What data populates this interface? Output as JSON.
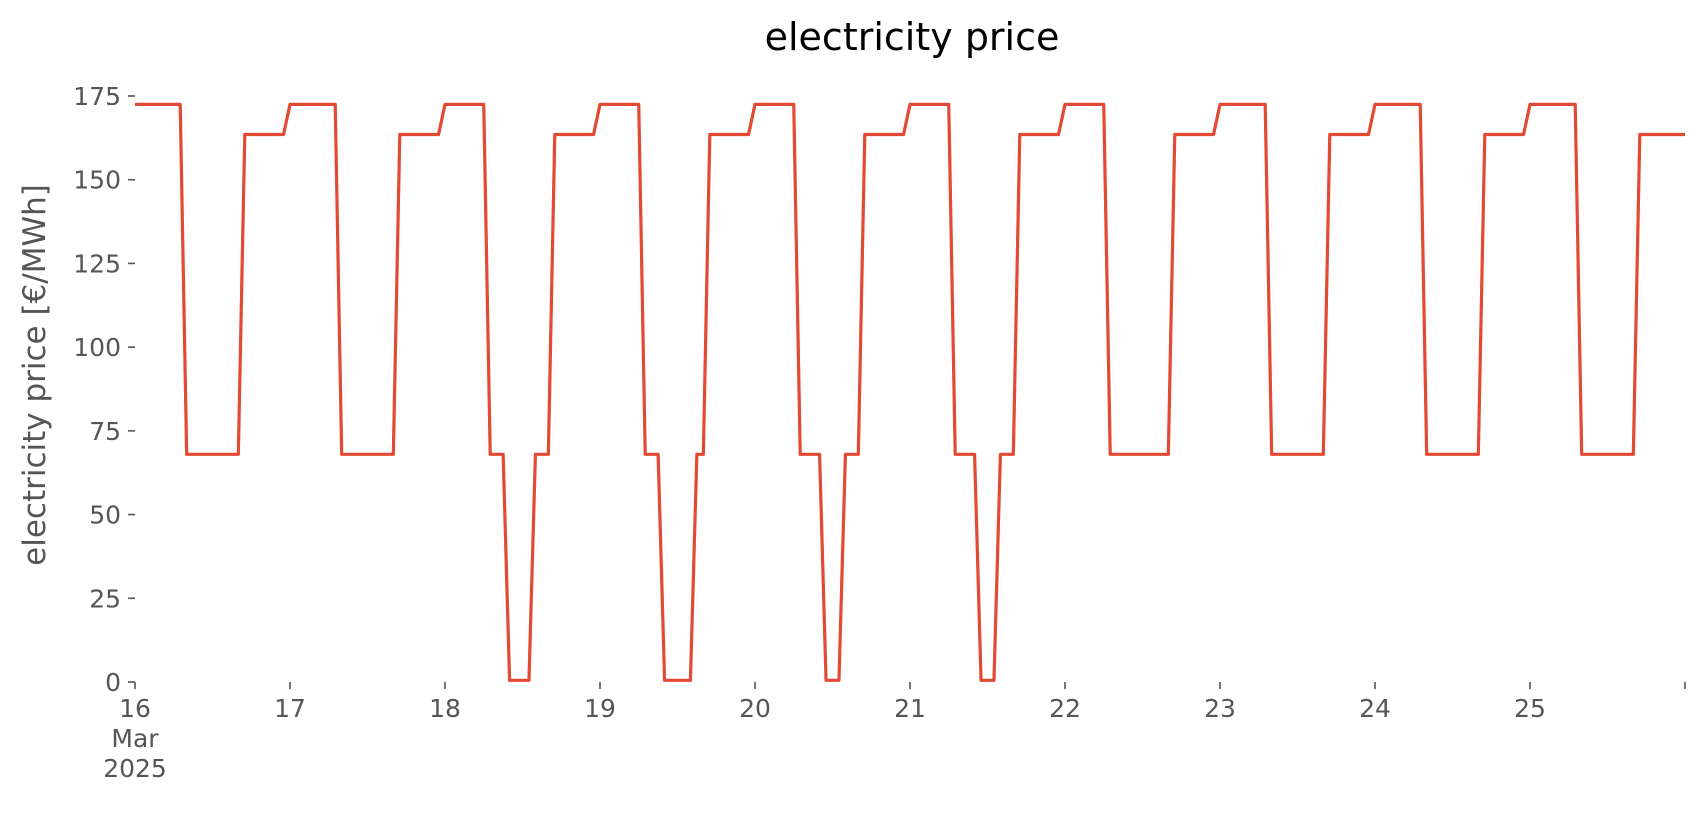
{
  "chart_data": {
    "type": "line",
    "title": "electricity price",
    "xlabel": "",
    "ylabel": "electricity price [€/MWh]",
    "ylim": [
      0,
      175
    ],
    "xlim": [
      "2025-03-16T00:00",
      "2025-03-26T00:00"
    ],
    "grid": false,
    "legend": false,
    "colors": {
      "line": "#e24a33",
      "text": "#555555",
      "title": "#000000"
    },
    "y_ticks": [
      0,
      25,
      50,
      75,
      100,
      125,
      150,
      175
    ],
    "y_tick_labels": [
      "0",
      "25",
      "50",
      "75",
      "100",
      "125",
      "150",
      "175"
    ],
    "x_ticks": [
      "2025-03-16",
      "2025-03-17",
      "2025-03-18",
      "2025-03-19",
      "2025-03-20",
      "2025-03-21",
      "2025-03-22",
      "2025-03-23",
      "2025-03-24",
      "2025-03-25",
      "2025-03-26"
    ],
    "x_tick_labels": [
      "16",
      "17",
      "18",
      "19",
      "20",
      "21",
      "22",
      "23",
      "24",
      "25",
      ""
    ],
    "x_tick_sublabels": [
      "Mar",
      "2025"
    ],
    "series": [
      {
        "x": [
          "2025-03-16T00:00",
          "2025-03-16T07:00",
          "2025-03-16T08:00",
          "2025-03-16T16:00",
          "2025-03-16T17:00",
          "2025-03-16T23:00",
          "2025-03-17T00:00",
          "2025-03-17T07:00",
          "2025-03-17T08:00",
          "2025-03-17T16:00",
          "2025-03-17T17:00",
          "2025-03-17T23:00",
          "2025-03-18T00:00",
          "2025-03-18T06:00",
          "2025-03-18T07:00",
          "2025-03-18T09:00",
          "2025-03-18T10:00",
          "2025-03-18T13:00",
          "2025-03-18T14:00",
          "2025-03-18T16:00",
          "2025-03-18T17:00",
          "2025-03-18T23:00",
          "2025-03-19T00:00",
          "2025-03-19T06:00",
          "2025-03-19T07:00",
          "2025-03-19T09:00",
          "2025-03-19T10:00",
          "2025-03-19T14:00",
          "2025-03-19T15:00",
          "2025-03-19T16:00",
          "2025-03-19T17:00",
          "2025-03-19T23:00",
          "2025-03-20T00:00",
          "2025-03-20T06:00",
          "2025-03-20T07:00",
          "2025-03-20T10:00",
          "2025-03-20T11:00",
          "2025-03-20T13:00",
          "2025-03-20T14:00",
          "2025-03-20T16:00",
          "2025-03-20T17:00",
          "2025-03-20T23:00",
          "2025-03-21T00:00",
          "2025-03-21T06:00",
          "2025-03-21T07:00",
          "2025-03-21T10:00",
          "2025-03-21T11:00",
          "2025-03-21T13:00",
          "2025-03-21T14:00",
          "2025-03-21T16:00",
          "2025-03-21T17:00",
          "2025-03-21T23:00",
          "2025-03-22T00:00",
          "2025-03-22T06:00",
          "2025-03-22T07:00",
          "2025-03-22T16:00",
          "2025-03-22T17:00",
          "2025-03-22T23:00",
          "2025-03-23T00:00",
          "2025-03-23T07:00",
          "2025-03-23T08:00",
          "2025-03-23T16:00",
          "2025-03-23T17:00",
          "2025-03-23T23:00",
          "2025-03-24T00:00",
          "2025-03-24T07:00",
          "2025-03-24T08:00",
          "2025-03-24T16:00",
          "2025-03-24T17:00",
          "2025-03-24T23:00",
          "2025-03-25T00:00",
          "2025-03-25T07:00",
          "2025-03-25T08:00",
          "2025-03-25T16:00",
          "2025-03-25T17:00",
          "2025-03-26T00:00"
        ],
        "y": [
          172.5,
          172.5,
          68,
          68,
          163.5,
          163.5,
          172.5,
          172.5,
          68,
          68,
          163.5,
          163.5,
          172.5,
          172.5,
          68,
          68,
          0.5,
          0.5,
          68,
          68,
          163.5,
          163.5,
          172.5,
          172.5,
          68,
          68,
          0.5,
          0.5,
          68,
          68,
          163.5,
          163.5,
          172.5,
          172.5,
          68,
          68,
          0.5,
          0.5,
          68,
          68,
          163.5,
          163.5,
          172.5,
          172.5,
          68,
          68,
          0.5,
          0.5,
          68,
          68,
          163.5,
          163.5,
          172.5,
          172.5,
          68,
          68,
          163.5,
          163.5,
          172.5,
          172.5,
          68,
          68,
          163.5,
          163.5,
          172.5,
          172.5,
          68,
          68,
          163.5,
          163.5,
          172.5,
          172.5,
          68,
          68,
          163.5,
          163.5
        ]
      }
    ]
  }
}
